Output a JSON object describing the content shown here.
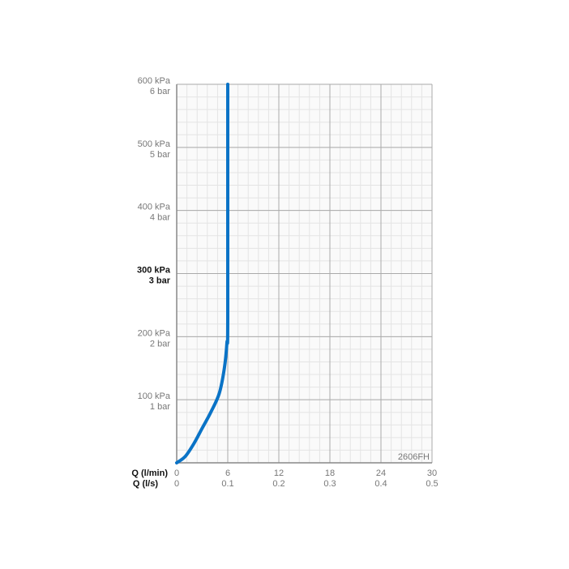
{
  "chart_data": {
    "type": "line",
    "title": "",
    "code_label": "2606FH",
    "x_axes": [
      {
        "label": "Q (l/min)",
        "ticks": [
          "0",
          "6",
          "12",
          "18",
          "24",
          "30"
        ],
        "range": [
          0,
          30
        ]
      },
      {
        "label": "Q (l/s)",
        "ticks": [
          "0",
          "0.1",
          "0.2",
          "0.3",
          "0.4",
          "0.5"
        ],
        "range": [
          0,
          0.5
        ]
      }
    ],
    "y_axis": {
      "range": [
        0,
        600
      ],
      "unit": "kPa",
      "ticks": [
        {
          "value": 100,
          "kpa": "100 kPa",
          "bar": "1 bar",
          "bold": false
        },
        {
          "value": 200,
          "kpa": "200 kPa",
          "bar": "2 bar",
          "bold": false
        },
        {
          "value": 300,
          "kpa": "300 kPa",
          "bar": "3 bar",
          "bold": true
        },
        {
          "value": 400,
          "kpa": "400 kPa",
          "bar": "4 bar",
          "bold": false
        },
        {
          "value": 500,
          "kpa": "500 kPa",
          "bar": "5 bar",
          "bold": false
        },
        {
          "value": 600,
          "kpa": "600 kPa",
          "bar": "6 bar",
          "bold": false
        }
      ]
    },
    "grid": true,
    "series": [
      {
        "color": "#0a73c6",
        "x": [
          0,
          1,
          2,
          3,
          4,
          5,
          5.6,
          5.9,
          6,
          6
        ],
        "y": [
          0,
          10,
          30,
          55,
          80,
          110,
          150,
          190,
          230,
          600
        ]
      }
    ]
  }
}
